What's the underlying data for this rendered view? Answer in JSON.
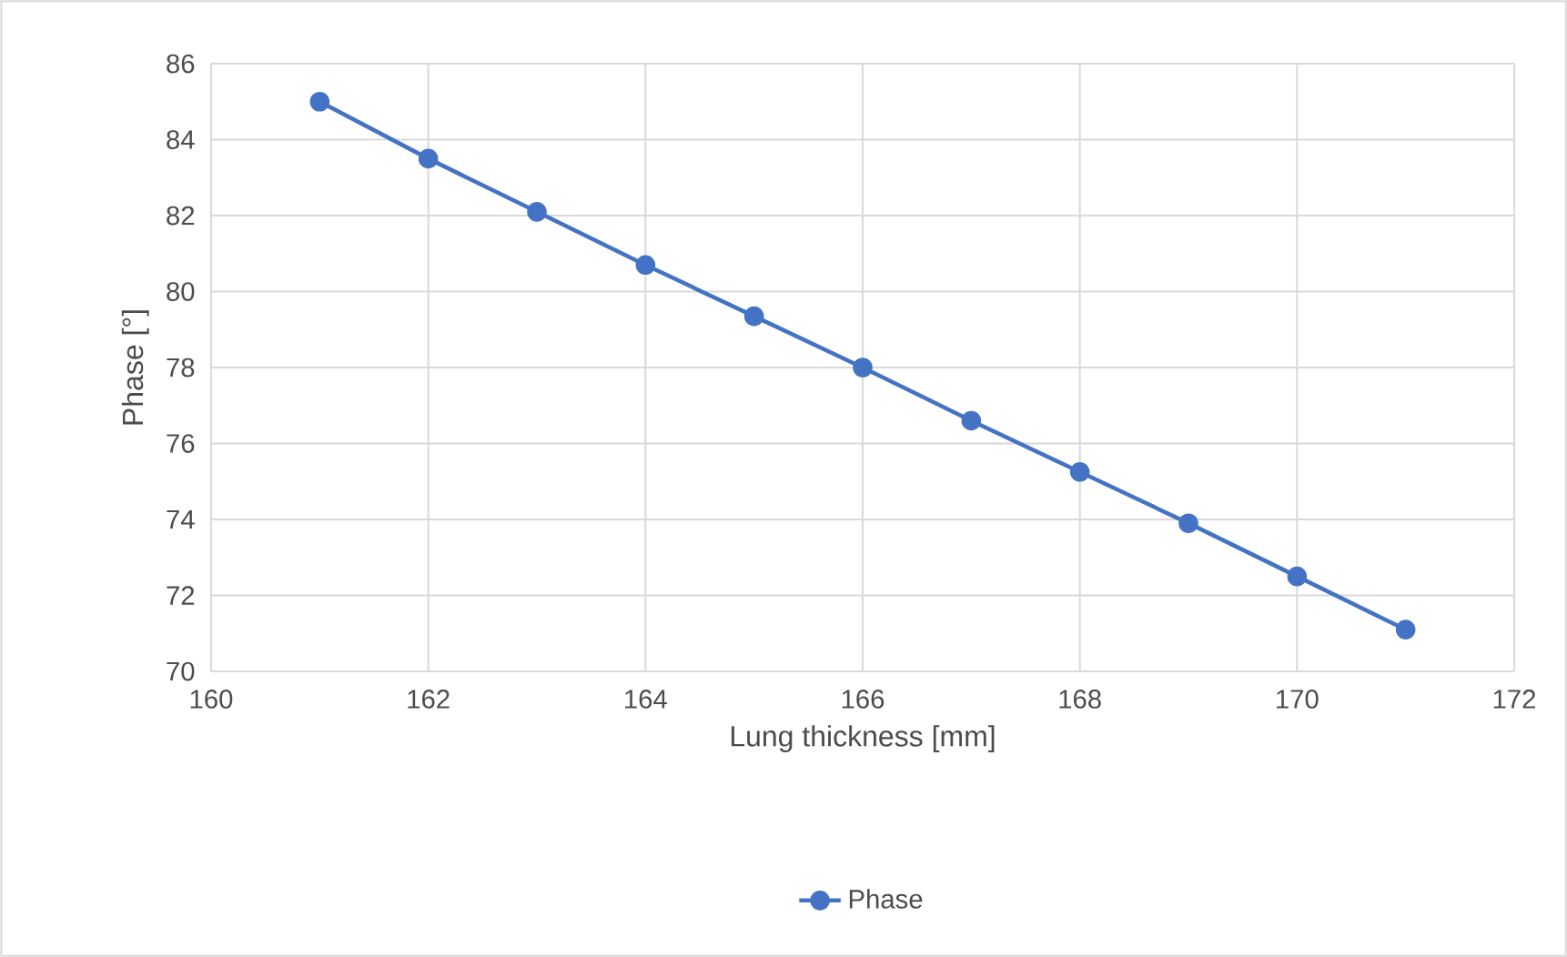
{
  "chart_data": {
    "type": "line",
    "xlabel": "Lung thickness [mm]",
    "ylabel": "Phase [°]",
    "x": [
      161,
      162,
      163,
      164,
      165,
      166,
      167,
      168,
      169,
      170,
      171
    ],
    "series": [
      {
        "name": "Phase",
        "color": "#4472c4",
        "values": [
          85.0,
          83.5,
          82.1,
          80.7,
          79.35,
          78.0,
          76.6,
          75.25,
          73.9,
          72.5,
          71.1
        ]
      }
    ],
    "xlim": [
      160,
      172
    ],
    "xticks": [
      160,
      162,
      164,
      166,
      168,
      170,
      172
    ],
    "ylim": [
      70,
      86
    ],
    "yticks": [
      70,
      72,
      74,
      76,
      78,
      80,
      82,
      84,
      86
    ],
    "grid": true,
    "legend": "bottom",
    "marker": "circle",
    "line_style": "solid"
  }
}
